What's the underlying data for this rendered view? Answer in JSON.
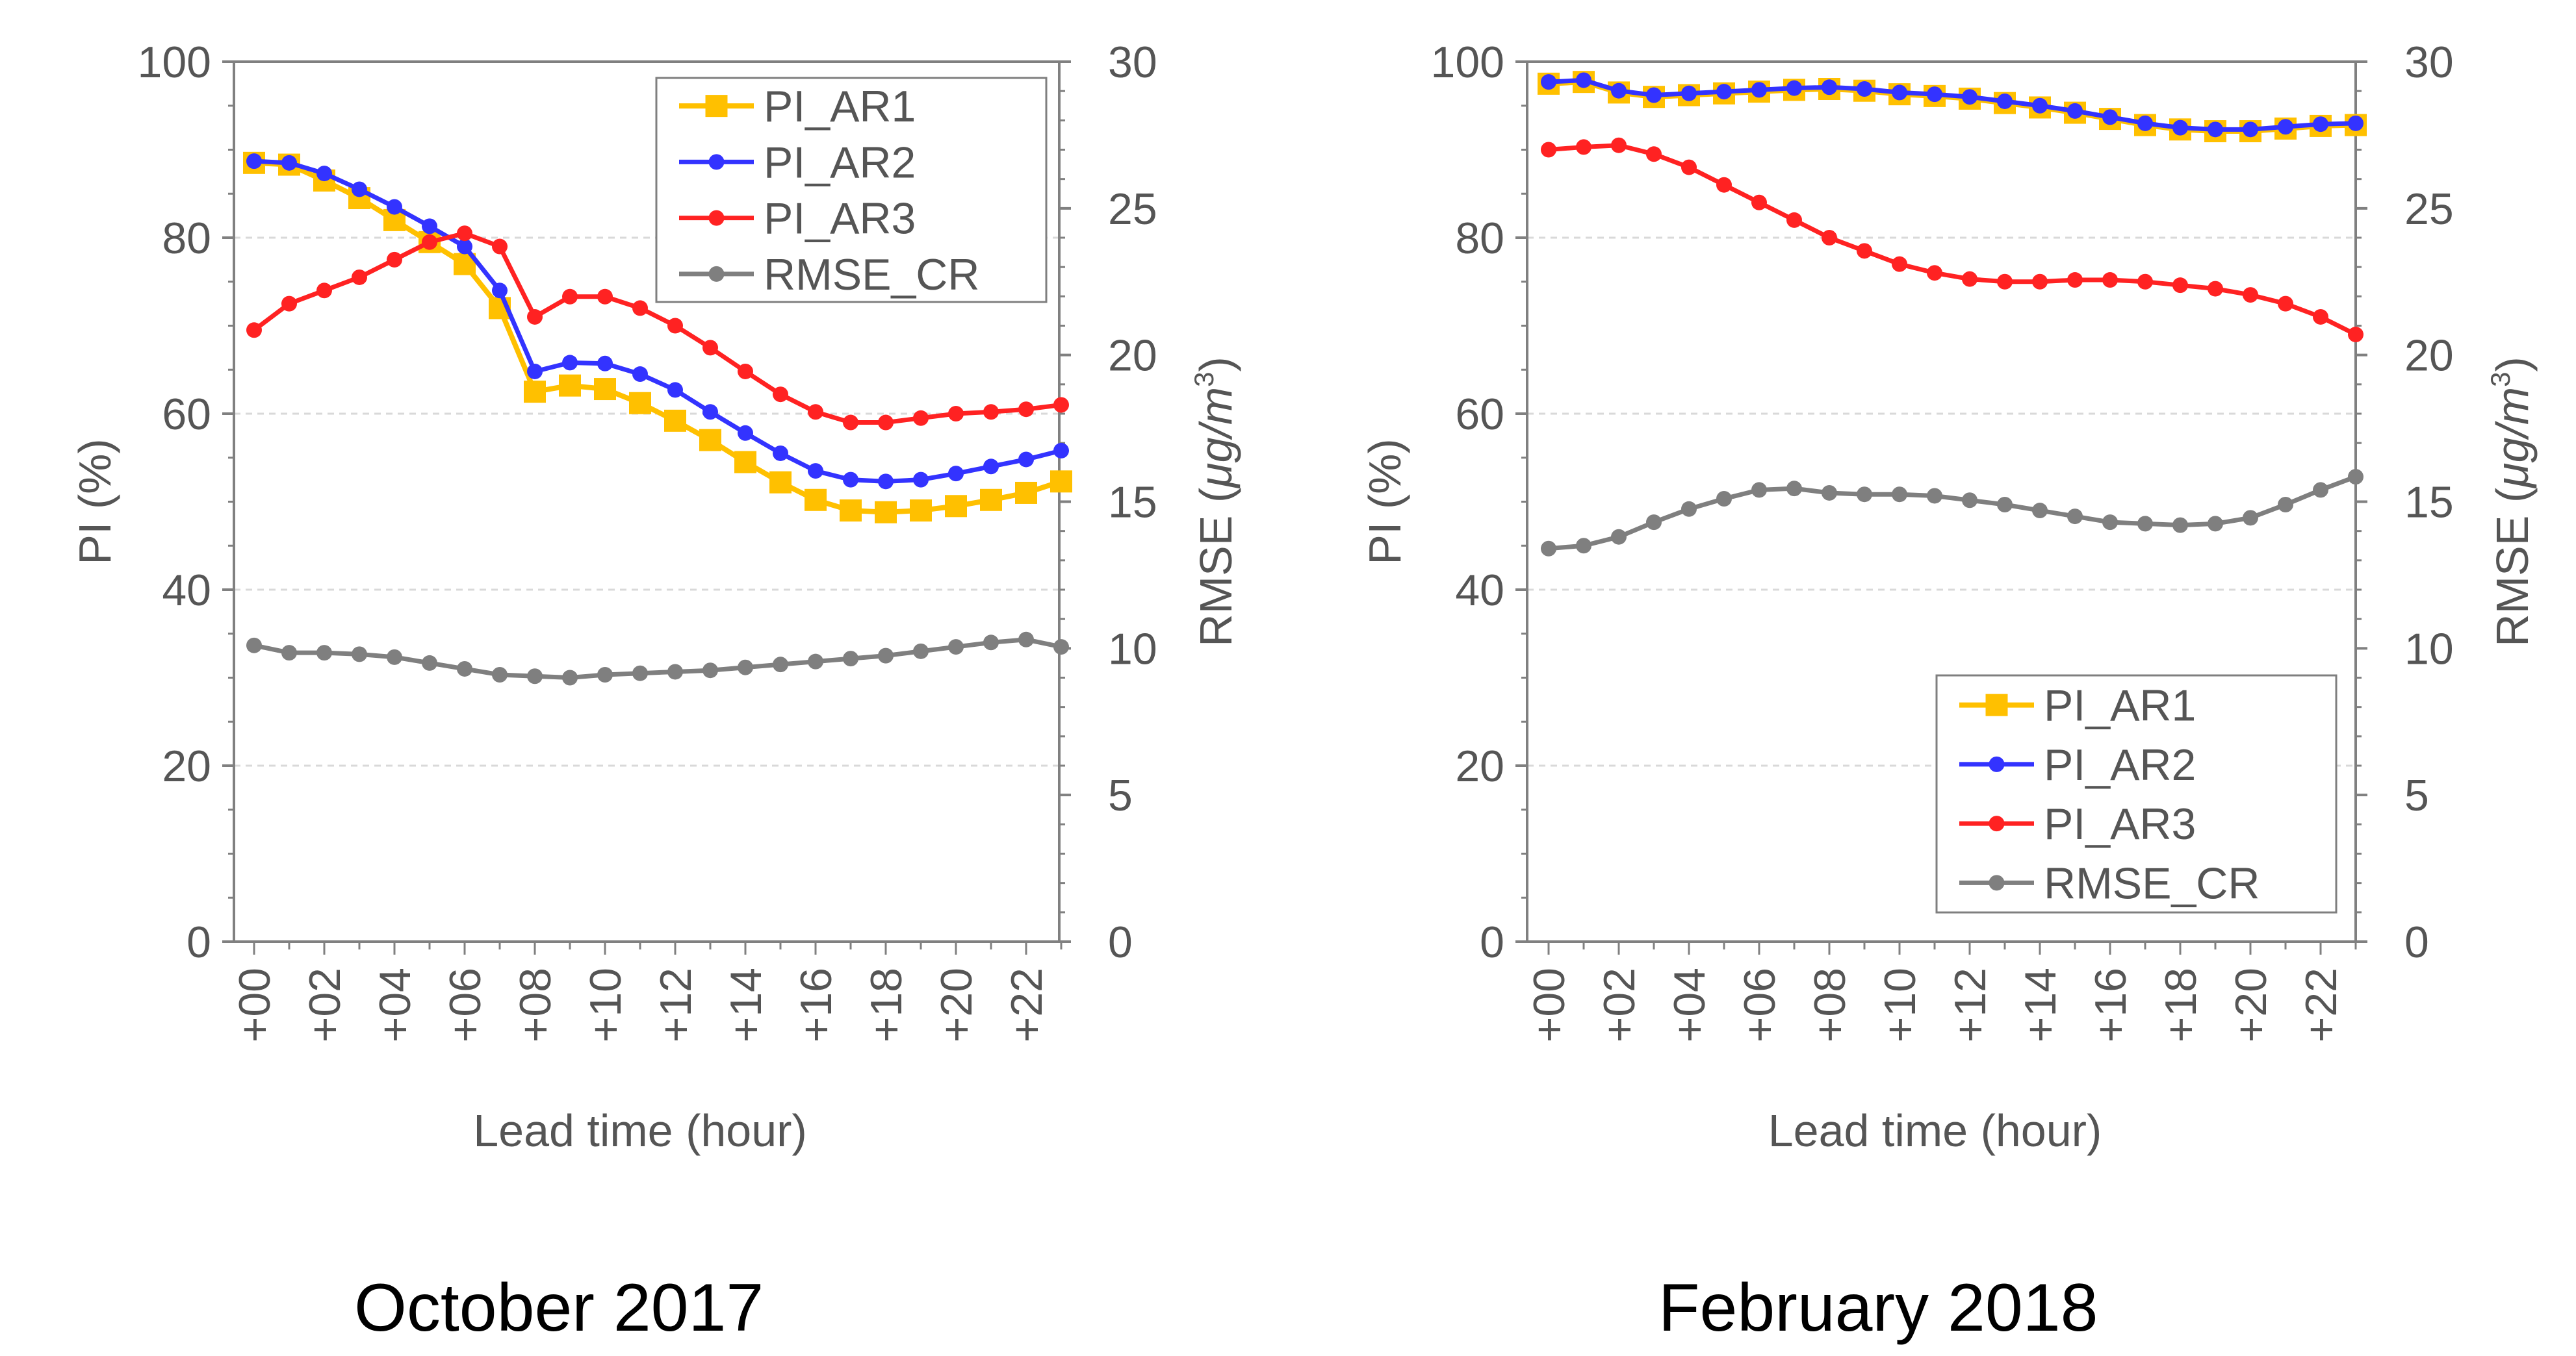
{
  "charts": [
    {
      "caption": "October 2017",
      "chart_data": {
        "type": "line",
        "title": "October 2017",
        "xlabel": "Lead time (hour)",
        "ylabel": "PI (%)",
        "y2label_prefix": "RMSE (",
        "y2label_unit": "μg/m",
        "y2label_sup": "3",
        "y2label_suffix": ")",
        "ylim": [
          0,
          100
        ],
        "y2lim": [
          0,
          30
        ],
        "yticks": [
          "0",
          "20",
          "40",
          "60",
          "80",
          "100"
        ],
        "y2ticks": [
          "0",
          "5",
          "10",
          "15",
          "20",
          "25",
          "30"
        ],
        "grid": true,
        "legend_position": "top-right",
        "x": [
          0,
          1,
          2,
          3,
          4,
          5,
          6,
          7,
          8,
          9,
          10,
          11,
          12,
          13,
          14,
          15,
          16,
          17,
          18,
          19,
          20,
          21,
          22,
          23
        ],
        "xtick_labels": [
          "+00",
          "+02",
          "+04",
          "+06",
          "+08",
          "+10",
          "+12",
          "+14",
          "+16",
          "+18",
          "+20",
          "+22"
        ],
        "series": [
          {
            "name": "PI_AR1",
            "axis": "left",
            "color": "#FFC000",
            "marker": "square",
            "values": [
              88.5,
              88.3,
              86.5,
              84.5,
              82.0,
              79.5,
              77.0,
              72.0,
              62.5,
              63.2,
              62.8,
              61.2,
              59.2,
              57.0,
              54.5,
              52.2,
              50.2,
              49.0,
              48.8,
              49.0,
              49.5,
              50.2,
              51.0,
              52.3
            ]
          },
          {
            "name": "PI_AR2",
            "axis": "left",
            "color": "#3333FF",
            "marker": "circle",
            "values": [
              88.7,
              88.5,
              87.3,
              85.5,
              83.5,
              81.3,
              79.0,
              74.0,
              64.8,
              65.8,
              65.7,
              64.5,
              62.7,
              60.2,
              57.8,
              55.5,
              53.5,
              52.5,
              52.3,
              52.5,
              53.2,
              54.0,
              54.8,
              55.8
            ]
          },
          {
            "name": "PI_AR3",
            "axis": "left",
            "color": "#FF2222",
            "marker": "circle",
            "values": [
              69.5,
              72.5,
              74.0,
              75.5,
              77.5,
              79.5,
              80.5,
              79.0,
              71.0,
              73.3,
              73.3,
              72.0,
              70.0,
              67.5,
              64.8,
              62.2,
              60.2,
              59.0,
              59.0,
              59.5,
              60.0,
              60.2,
              60.5,
              61.0
            ]
          },
          {
            "name": "RMSE_CR",
            "axis": "right",
            "color": "#7F7F7F",
            "marker": "circle",
            "values": [
              10.1,
              9.85,
              9.85,
              9.8,
              9.7,
              9.5,
              9.3,
              9.1,
              9.05,
              9.0,
              9.1,
              9.15,
              9.2,
              9.25,
              9.35,
              9.45,
              9.55,
              9.65,
              9.75,
              9.9,
              10.05,
              10.2,
              10.3,
              10.05
            ]
          }
        ]
      }
    },
    {
      "caption": "February 2018",
      "chart_data": {
        "type": "line",
        "title": "February 2018",
        "xlabel": "Lead time (hour)",
        "ylabel": "PI (%)",
        "y2label_prefix": "RMSE (",
        "y2label_unit": "μg/m",
        "y2label_sup": "3",
        "y2label_suffix": ")",
        "ylim": [
          0,
          100
        ],
        "y2lim": [
          0,
          30
        ],
        "yticks": [
          "0",
          "20",
          "40",
          "60",
          "80",
          "100"
        ],
        "y2ticks": [
          "0",
          "5",
          "10",
          "15",
          "20",
          "25",
          "30"
        ],
        "grid": true,
        "legend_position": "bottom-right",
        "x": [
          0,
          1,
          2,
          3,
          4,
          5,
          6,
          7,
          8,
          9,
          10,
          11,
          12,
          13,
          14,
          15,
          16,
          17,
          18,
          19,
          20,
          21,
          22,
          23
        ],
        "xtick_labels": [
          "+00",
          "+02",
          "+04",
          "+06",
          "+08",
          "+10",
          "+12",
          "+14",
          "+16",
          "+18",
          "+20",
          "+22"
        ],
        "series": [
          {
            "name": "PI_AR1",
            "axis": "left",
            "color": "#FFC000",
            "marker": "square",
            "values": [
              97.5,
              97.7,
              96.5,
              96.0,
              96.2,
              96.4,
              96.6,
              96.8,
              96.9,
              96.7,
              96.3,
              96.1,
              95.8,
              95.3,
              94.8,
              94.2,
              93.5,
              92.8,
              92.3,
              92.1,
              92.1,
              92.4,
              92.7,
              92.8
            ]
          },
          {
            "name": "PI_AR2",
            "axis": "left",
            "color": "#3333FF",
            "marker": "circle",
            "values": [
              97.7,
              97.9,
              96.7,
              96.2,
              96.4,
              96.6,
              96.8,
              97.0,
              97.1,
              96.9,
              96.5,
              96.3,
              96.0,
              95.5,
              95.0,
              94.4,
              93.7,
              93.0,
              92.5,
              92.3,
              92.3,
              92.6,
              92.9,
              93.0
            ]
          },
          {
            "name": "PI_AR3",
            "axis": "left",
            "color": "#FF2222",
            "marker": "circle",
            "values": [
              90.0,
              90.3,
              90.5,
              89.5,
              88.0,
              86.0,
              84.0,
              82.0,
              80.0,
              78.5,
              77.0,
              76.0,
              75.3,
              75.0,
              75.0,
              75.2,
              75.2,
              75.0,
              74.6,
              74.2,
              73.5,
              72.5,
              71.0,
              69.0
            ]
          },
          {
            "name": "RMSE_CR",
            "axis": "right",
            "color": "#7F7F7F",
            "marker": "circle",
            "values": [
              13.4,
              13.5,
              13.8,
              14.3,
              14.75,
              15.1,
              15.4,
              15.45,
              15.3,
              15.25,
              15.25,
              15.2,
              15.05,
              14.9,
              14.7,
              14.5,
              14.3,
              14.25,
              14.2,
              14.25,
              14.45,
              14.9,
              15.4,
              15.85
            ]
          }
        ]
      }
    }
  ]
}
